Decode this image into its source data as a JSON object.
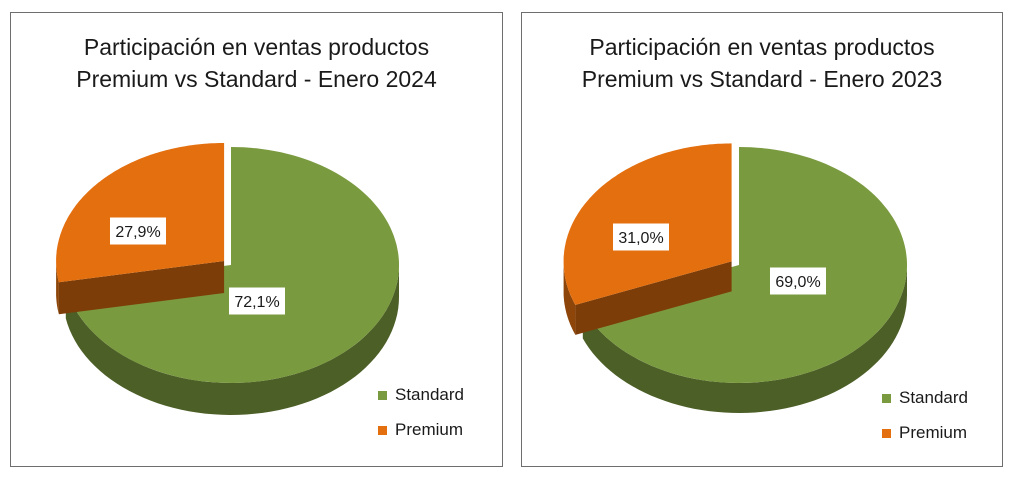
{
  "colors": {
    "standard": "#7a9a3f",
    "premium": "#e46f0e"
  },
  "chart_data": [
    {
      "type": "pie",
      "title": [
        "Participación en ventas productos",
        "Premium vs Standard - Enero 2024"
      ],
      "categories": [
        "Standard",
        "Premium"
      ],
      "values": [
        72.1,
        27.9
      ],
      "data_labels": [
        "72,1%",
        "27,9%"
      ],
      "legend": "right-bottom",
      "exploded": "Premium"
    },
    {
      "type": "pie",
      "title": [
        "Participación en ventas productos",
        "Premium vs Standard - Enero 2023"
      ],
      "categories": [
        "Standard",
        "Premium"
      ],
      "values": [
        69.0,
        31.0
      ],
      "data_labels": [
        "69,0%",
        "31,0%"
      ],
      "legend": "right-bottom",
      "exploded": "Premium"
    }
  ]
}
